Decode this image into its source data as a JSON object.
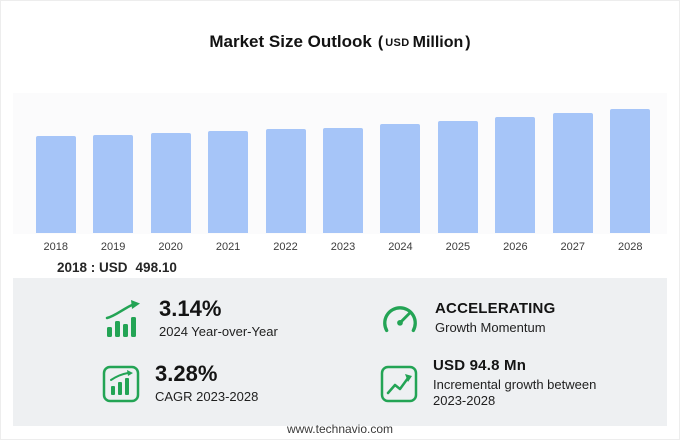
{
  "title": {
    "main": "Market Size Outlook",
    "paren_open": "(",
    "currency": "USD",
    "unit": "Million",
    "paren_close": ")"
  },
  "chart_data": {
    "type": "bar",
    "title": "Market Size Outlook (USD Million)",
    "categories": [
      "2018",
      "2019",
      "2020",
      "2021",
      "2022",
      "2023",
      "2024",
      "2025",
      "2026",
      "2027",
      "2028"
    ],
    "values": [
      498.1,
      506.5,
      515.0,
      523.6,
      532.4,
      541.5,
      558.5,
      576.8,
      595.7,
      615.2,
      636.3
    ],
    "xlabel": "",
    "ylabel": "USD Million",
    "ylim": [
      0,
      720
    ],
    "grid": false,
    "legend": false,
    "bar_color": "#a6c5f8"
  },
  "annotation": {
    "prefix": "2018 : USD",
    "value": "498.10"
  },
  "stats": [
    {
      "icon": "bar-growth-icon",
      "value": "3.14%",
      "label": "2024 Year-over-Year"
    },
    {
      "icon": "gauge-icon",
      "value": "ACCELERATING",
      "label": "Growth Momentum"
    },
    {
      "icon": "cagr-chart-icon",
      "value": "3.28%",
      "label": "CAGR 2023-2028"
    },
    {
      "icon": "incremental-growth-icon",
      "value": "USD 94.8 Mn",
      "label": "Incremental growth between 2023-2028"
    }
  ],
  "footer": {
    "url": "www.technavio.com"
  },
  "colors": {
    "accent_green": "#23a455",
    "bar_blue": "#a6c5f8",
    "panel_gray": "#eef0f2"
  }
}
